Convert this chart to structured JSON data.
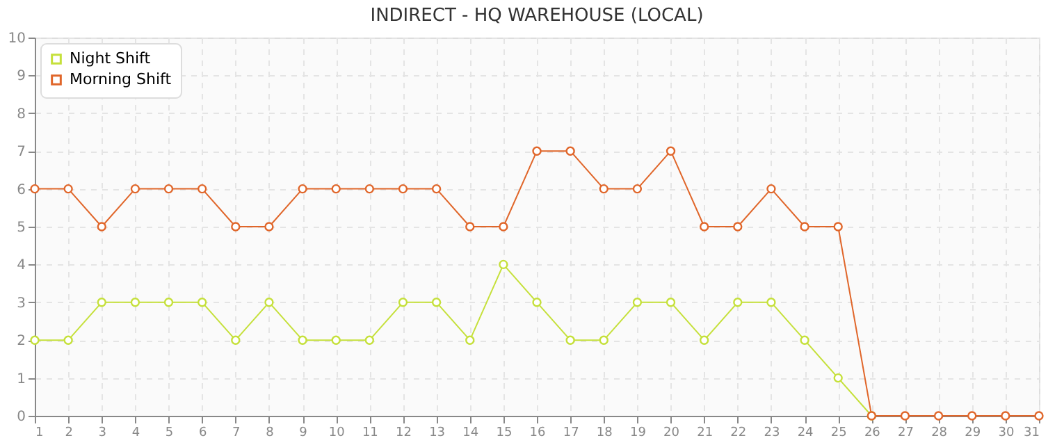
{
  "chart_data": {
    "type": "line",
    "title": "INDIRECT - HQ WAREHOUSE (LOCAL)",
    "x": [
      1,
      2,
      3,
      4,
      5,
      6,
      7,
      8,
      9,
      10,
      11,
      12,
      13,
      14,
      15,
      16,
      17,
      18,
      19,
      20,
      21,
      22,
      23,
      24,
      25,
      26,
      27,
      28,
      29,
      30,
      31
    ],
    "series": [
      {
        "name": "Night Shift",
        "color": "#c5e03a",
        "values": [
          2,
          2,
          3,
          3,
          3,
          3,
          2,
          3,
          2,
          2,
          2,
          3,
          3,
          2,
          4,
          3,
          2,
          2,
          3,
          3,
          2,
          3,
          3,
          2,
          1,
          0,
          null,
          null,
          null,
          null,
          null
        ]
      },
      {
        "name": "Morning Shift",
        "color": "#e0662a",
        "values": [
          6,
          6,
          5,
          6,
          6,
          6,
          5,
          5,
          6,
          6,
          6,
          6,
          6,
          5,
          5,
          7,
          7,
          6,
          6,
          7,
          5,
          5,
          6,
          5,
          5,
          0,
          0,
          0,
          0,
          0,
          0
        ]
      }
    ],
    "xlim": [
      1,
      31
    ],
    "xticks": [
      1,
      2,
      3,
      4,
      5,
      6,
      7,
      8,
      9,
      10,
      11,
      12,
      13,
      14,
      15,
      16,
      17,
      18,
      19,
      20,
      21,
      22,
      23,
      24,
      25,
      26,
      27,
      28,
      29,
      30,
      31
    ],
    "ylim": [
      0,
      10
    ],
    "yticks": [
      0,
      1,
      2,
      3,
      4,
      5,
      6,
      7,
      8,
      9,
      10
    ],
    "grid": true,
    "legend": "top left",
    "marker": "circle",
    "line_style": "solid"
  }
}
